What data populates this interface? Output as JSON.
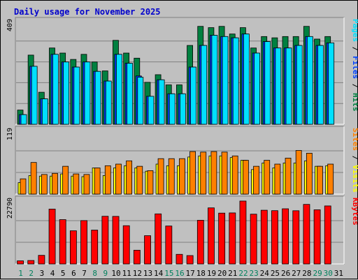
{
  "chart_data": {
    "title": "Daily usage for November 2025",
    "colors": {
      "hits": "#008040",
      "files": "#0040ff",
      "pages": "#00e0ff",
      "visits": "#ffff00",
      "sites": "#ff8000",
      "kbytes": "#ff0000",
      "weekend_day": "#00805c",
      "weekday": "#000000"
    },
    "days": [
      "1",
      "2",
      "3",
      "4",
      "5",
      "6",
      "7",
      "8",
      "9",
      "10",
      "11",
      "12",
      "13",
      "14",
      "15",
      "16",
      "17",
      "18",
      "19",
      "20",
      "21",
      "22",
      "23",
      "24",
      "25",
      "26",
      "27",
      "28",
      "29",
      "30",
      "31"
    ],
    "weekend_days": [
      1,
      2,
      8,
      9,
      15,
      16,
      22,
      23,
      29,
      30
    ],
    "panels": [
      {
        "id": "hits",
        "ymax_label": "409",
        "ymax": 409,
        "side_labels": [
          {
            "text": "Hits",
            "color": "#008040"
          },
          {
            "text": "/",
            "color": "#000000"
          },
          {
            "text": "Files",
            "color": "#0040ff"
          },
          {
            "text": "/",
            "color": "#000000"
          },
          {
            "text": "Pages",
            "color": "#00e0ff"
          }
        ],
        "series": [
          {
            "name": "Hits",
            "color": "#008040",
            "values": [
              56,
              272,
              126,
              300,
              280,
              255,
              275,
              245,
              210,
              330,
              280,
              260,
              165,
              195,
              155,
              155,
              310,
              385,
              380,
              385,
              355,
              380,
              300,
              345,
              340,
              345,
              345,
              385,
              335,
              345,
              0
            ]
          },
          {
            "name": "Files",
            "color": "#0040ff",
            "values": [
              38,
              228,
              100,
              275,
              245,
              225,
              245,
              208,
              170,
              275,
              240,
              190,
              110,
              175,
              120,
              120,
              225,
              310,
              350,
              345,
              340,
              355,
              280,
              325,
              300,
              300,
              310,
              345,
              310,
              320,
              0
            ]
          },
          {
            "name": "Pages",
            "color": "#00e0ff",
            "values": [
              38,
              228,
              100,
              275,
              245,
              225,
              245,
              208,
              170,
              275,
              240,
              185,
              110,
              175,
              120,
              120,
              225,
              310,
              350,
              345,
              340,
              355,
              280,
              325,
              300,
              300,
              310,
              345,
              310,
              320,
              0
            ]
          }
        ]
      },
      {
        "id": "visits",
        "ymax_label": "119",
        "ymax": 119,
        "side_labels": [
          {
            "text": "Visits",
            "color": "#ffff00"
          },
          {
            "text": "/",
            "color": "#000000"
          },
          {
            "text": "Sites",
            "color": "#ff8000"
          }
        ],
        "series": [
          {
            "name": "Visits",
            "color": "#ffff00",
            "values": [
              21,
              34,
              33,
              33,
              37,
              33,
              32,
              48,
              34,
              48,
              52,
              48,
              42,
              55,
              52,
              52,
              68,
              70,
              70,
              70,
              67,
              62,
              45,
              57,
              48,
              57,
              57,
              61,
              51,
              52,
              0
            ]
          },
          {
            "name": "Sites",
            "color": "#ff8000",
            "values": [
              28,
              58,
              36,
              38,
              51,
              37,
              36,
              48,
              52,
              55,
              61,
              51,
              43,
              65,
              65,
              65,
              78,
              77,
              78,
              77,
              70,
              62,
              51,
              62,
              55,
              66,
              80,
              75,
              51,
              55,
              0
            ]
          }
        ]
      },
      {
        "id": "kbytes",
        "ymax_label": "22790",
        "ymax": 22790,
        "side_labels": [
          {
            "text": "KBytes",
            "color": "#ff0000"
          }
        ],
        "series": [
          {
            "name": "KBytes",
            "color": "#ff0000",
            "values": [
              1080,
              1210,
              3020,
              19250,
              15560,
              11640,
              15220,
              11880,
              16730,
              16690,
              13420,
              4820,
              9920,
              17570,
              13310,
              3370,
              2940,
              15330,
              19680,
              17840,
              17910,
              22070,
              17470,
              18850,
              18700,
              19360,
              18670,
              20900,
              19010,
              20360,
              0
            ]
          }
        ]
      }
    ]
  }
}
